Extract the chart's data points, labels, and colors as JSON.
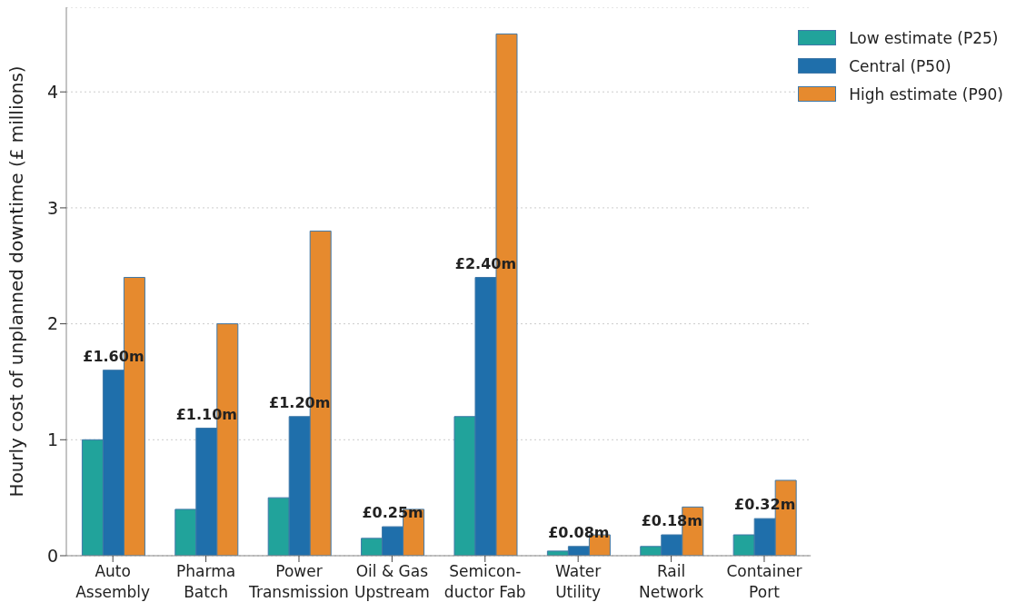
{
  "chart_data": {
    "type": "bar",
    "ylabel": "Hourly cost of unplanned downtime (£ millions)",
    "categories": [
      "Auto\nAssembly",
      "Pharma\nBatch",
      "Power\nTransmission",
      "Oil & Gas\nUpstream",
      "Semicon-\nductor Fab",
      "Water\nUtility",
      "Rail\nNetwork",
      "Container\nPort"
    ],
    "series": [
      {
        "name": "Low estimate (P25)",
        "color": "#21a39b",
        "values": [
          1.0,
          0.4,
          0.5,
          0.15,
          1.2,
          0.04,
          0.08,
          0.18
        ]
      },
      {
        "name": "Central (P50)",
        "color": "#1f6fab",
        "values": [
          1.6,
          1.1,
          1.2,
          0.25,
          2.4,
          0.08,
          0.18,
          0.32
        ],
        "value_labels": [
          "£1.60m",
          "£1.10m",
          "£1.20m",
          "£0.25m",
          "£2.40m",
          "£0.08m",
          "£0.18m",
          "£0.32m"
        ]
      },
      {
        "name": "High estimate (P90)",
        "color": "#e68a2e",
        "values": [
          2.4,
          2.0,
          2.8,
          0.4,
          4.5,
          0.18,
          0.42,
          0.65
        ]
      }
    ],
    "ylim": [
      0,
      4.73
    ],
    "yticks": [
      0,
      1,
      2,
      3,
      4
    ],
    "grid": "y",
    "legend": "top right"
  }
}
